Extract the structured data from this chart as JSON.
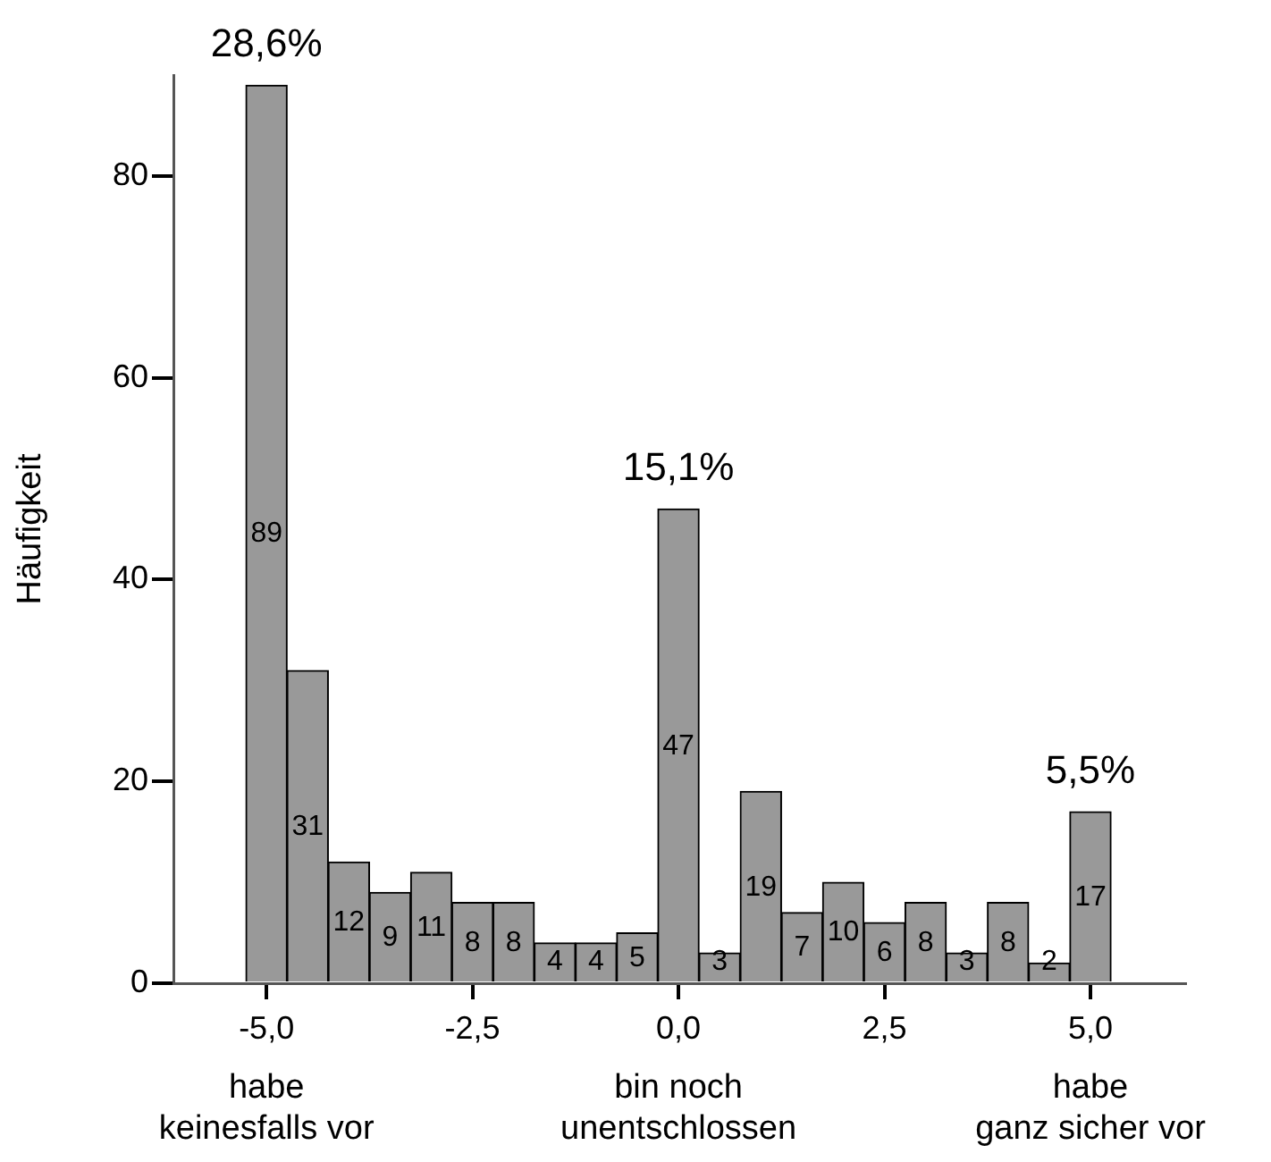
{
  "chart_data": {
    "type": "histogram",
    "ylabel": "Häufigkeit",
    "bins": [
      -5.25,
      -4.75,
      -4.25,
      -3.75,
      -3.25,
      -2.75,
      -2.25,
      -1.75,
      -1.25,
      -0.75,
      -0.25,
      0.25,
      0.75,
      1.25,
      1.75,
      2.25,
      2.75,
      3.25,
      3.75,
      4.25,
      4.75,
      5.25
    ],
    "values": [
      89,
      31,
      12,
      9,
      11,
      8,
      8,
      4,
      4,
      5,
      47,
      3,
      19,
      7,
      10,
      6,
      8,
      3,
      8,
      2,
      17
    ],
    "color": "#999999",
    "data_labels": true,
    "grid": false,
    "legend": false,
    "xlim": [
      -6.13,
      6.15
    ],
    "xticks": [
      {
        "value": -5,
        "label": "-5,0"
      },
      {
        "value": -2.5,
        "label": "-2,5"
      },
      {
        "value": 0,
        "label": "0,0"
      },
      {
        "value": 2.5,
        "label": "2,5"
      },
      {
        "value": 5,
        "label": "5,0"
      }
    ],
    "ylim": [
      0,
      90
    ],
    "yticks": [
      0,
      20,
      40,
      60,
      80
    ],
    "annotations": [
      {
        "text": "28,6%",
        "x": -5,
        "y": 89
      },
      {
        "text": "15,1%",
        "x": 0,
        "y": 47
      },
      {
        "text": "5,5%",
        "x": 5,
        "y": 17
      },
      "habe\nkeinesfalls vor",
      "bin noch\nunentschlossen",
      "habe\nganz sicher vor"
    ]
  }
}
